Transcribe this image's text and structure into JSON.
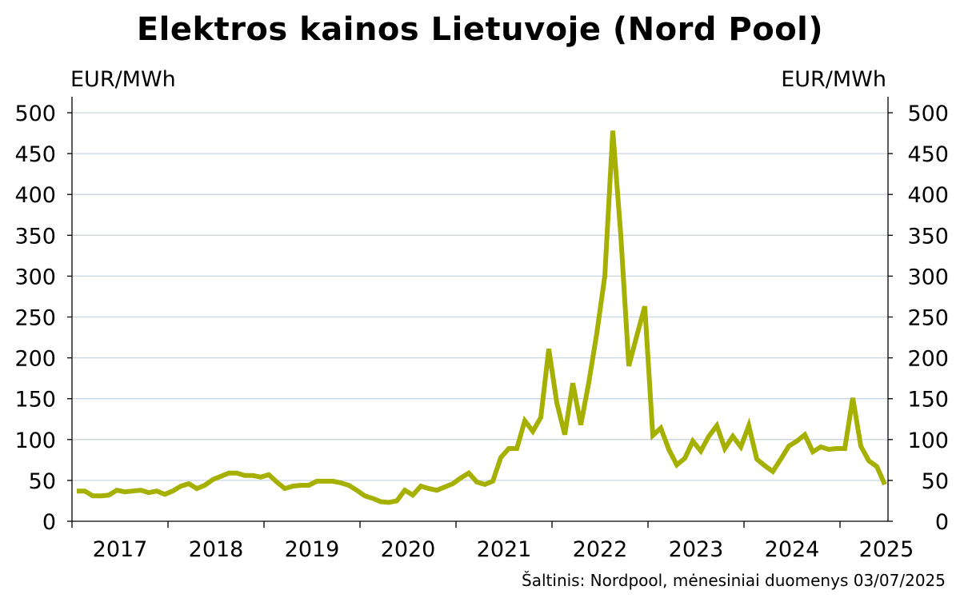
{
  "title": "Elektros kainos Lietuvoje (Nord Pool)",
  "ylabel_left": "EUR/MWh",
  "ylabel_right": "EUR/MWh",
  "source": "Šaltinis: Nordpool, mėnesiniai duomenys 03/07/2025",
  "colors": {
    "line": "#a5b000",
    "grid": "#c8d6e0",
    "axis": "#000000"
  },
  "chart_data": {
    "type": "line",
    "title": "Elektros kainos Lietuvoje (Nord Pool)",
    "ylabel": "EUR/MWh",
    "ylim": [
      0,
      500
    ],
    "yticks": [
      0,
      50,
      100,
      150,
      200,
      250,
      300,
      350,
      400,
      450,
      500
    ],
    "xticks": [
      "2017",
      "2018",
      "2019",
      "2020",
      "2021",
      "2022",
      "2023",
      "2024",
      "2025"
    ],
    "grid": true,
    "x_start": "2017-01",
    "x_end": "2025-06",
    "series": [
      {
        "values": [
          37,
          37,
          31,
          31,
          32,
          38,
          36,
          37,
          38,
          35,
          37,
          33,
          37,
          43,
          46,
          40,
          44,
          51,
          55,
          59,
          59,
          56,
          56,
          54,
          57,
          48,
          40,
          43,
          44,
          44,
          49,
          49,
          49,
          47,
          44,
          38,
          31,
          28,
          24,
          23,
          25,
          38,
          32,
          43,
          40,
          38,
          42,
          46,
          53,
          59,
          48,
          45,
          49,
          78,
          89,
          89,
          123,
          110,
          127,
          211,
          145,
          106,
          169,
          118,
          170,
          230,
          300,
          478,
          350,
          190,
          227,
          263,
          105,
          114,
          88,
          69,
          77,
          98,
          86,
          104,
          117,
          89,
          104,
          91,
          117,
          76,
          68,
          61,
          76,
          92,
          98,
          106,
          85,
          91,
          88,
          89,
          89,
          151,
          92,
          74,
          67,
          45
        ],
        "first_month": "2017-01"
      }
    ]
  }
}
